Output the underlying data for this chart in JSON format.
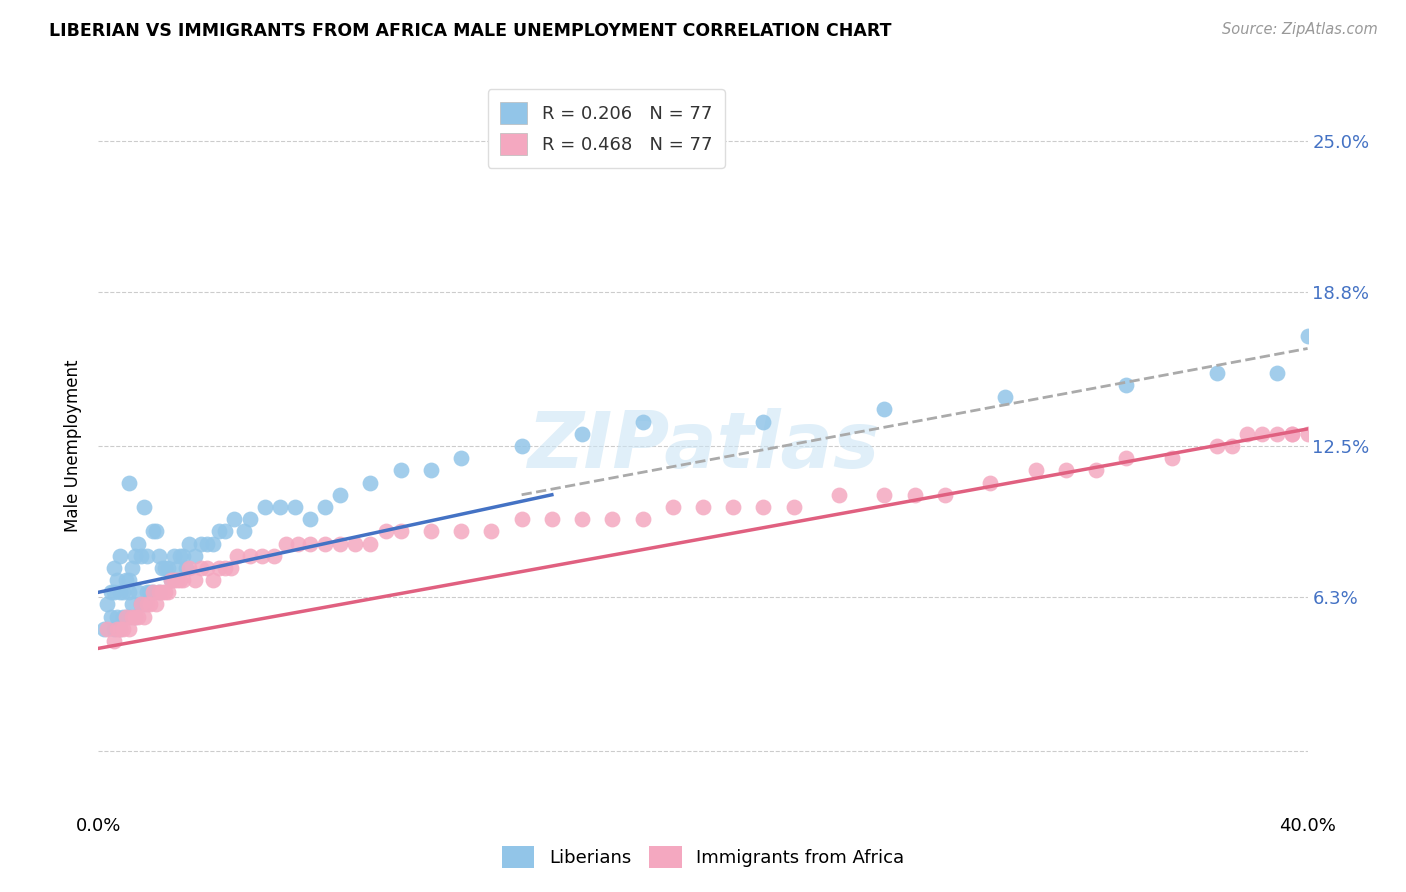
{
  "title": "LIBERIAN VS IMMIGRANTS FROM AFRICA MALE UNEMPLOYMENT CORRELATION CHART",
  "source": "Source: ZipAtlas.com",
  "ylabel": "Male Unemployment",
  "xlim": [
    0.0,
    0.4
  ],
  "ylim": [
    -0.025,
    0.275
  ],
  "yticks": [
    0.0,
    0.063,
    0.125,
    0.188,
    0.25
  ],
  "ytick_labels": [
    "",
    "6.3%",
    "12.5%",
    "18.8%",
    "25.0%"
  ],
  "xticks": [
    0.0,
    0.08,
    0.16,
    0.24,
    0.32,
    0.4
  ],
  "xtick_labels": [
    "0.0%",
    "",
    "",
    "",
    "",
    "40.0%"
  ],
  "color_blue": "#92C5E8",
  "color_pink": "#F4A8C0",
  "line_blue": "#4472C4",
  "line_pink": "#E06080",
  "line_dash_color": "#AAAAAA",
  "R_blue": 0.206,
  "R_pink": 0.468,
  "N": 77,
  "legend_label_blue": "Liberians",
  "legend_label_pink": "Immigrants from Africa",
  "watermark": "ZIPatlas",
  "blue_x": [
    0.002,
    0.003,
    0.004,
    0.004,
    0.005,
    0.005,
    0.005,
    0.006,
    0.006,
    0.007,
    0.007,
    0.007,
    0.008,
    0.008,
    0.009,
    0.009,
    0.01,
    0.01,
    0.01,
    0.01,
    0.011,
    0.011,
    0.012,
    0.012,
    0.013,
    0.013,
    0.014,
    0.014,
    0.015,
    0.015,
    0.016,
    0.016,
    0.017,
    0.018,
    0.018,
    0.019,
    0.02,
    0.02,
    0.021,
    0.022,
    0.023,
    0.024,
    0.025,
    0.026,
    0.027,
    0.028,
    0.029,
    0.03,
    0.032,
    0.034,
    0.036,
    0.038,
    0.04,
    0.042,
    0.045,
    0.048,
    0.05,
    0.055,
    0.06,
    0.065,
    0.07,
    0.075,
    0.08,
    0.09,
    0.1,
    0.11,
    0.12,
    0.14,
    0.16,
    0.18,
    0.22,
    0.26,
    0.3,
    0.34,
    0.37,
    0.39,
    0.4
  ],
  "blue_y": [
    0.05,
    0.06,
    0.055,
    0.065,
    0.05,
    0.065,
    0.075,
    0.055,
    0.07,
    0.05,
    0.065,
    0.08,
    0.055,
    0.065,
    0.055,
    0.07,
    0.055,
    0.065,
    0.07,
    0.11,
    0.06,
    0.075,
    0.055,
    0.08,
    0.065,
    0.085,
    0.06,
    0.08,
    0.06,
    0.1,
    0.065,
    0.08,
    0.065,
    0.065,
    0.09,
    0.09,
    0.065,
    0.08,
    0.075,
    0.075,
    0.075,
    0.07,
    0.08,
    0.075,
    0.08,
    0.08,
    0.075,
    0.085,
    0.08,
    0.085,
    0.085,
    0.085,
    0.09,
    0.09,
    0.095,
    0.09,
    0.095,
    0.1,
    0.1,
    0.1,
    0.095,
    0.1,
    0.105,
    0.11,
    0.115,
    0.115,
    0.12,
    0.125,
    0.13,
    0.135,
    0.135,
    0.14,
    0.145,
    0.15,
    0.155,
    0.155,
    0.17
  ],
  "pink_x": [
    0.003,
    0.005,
    0.006,
    0.007,
    0.008,
    0.009,
    0.01,
    0.011,
    0.012,
    0.013,
    0.014,
    0.015,
    0.016,
    0.017,
    0.018,
    0.019,
    0.02,
    0.021,
    0.022,
    0.023,
    0.024,
    0.025,
    0.026,
    0.027,
    0.028,
    0.03,
    0.032,
    0.034,
    0.036,
    0.038,
    0.04,
    0.042,
    0.044,
    0.046,
    0.05,
    0.054,
    0.058,
    0.062,
    0.066,
    0.07,
    0.075,
    0.08,
    0.085,
    0.09,
    0.095,
    0.1,
    0.11,
    0.12,
    0.13,
    0.14,
    0.15,
    0.16,
    0.17,
    0.18,
    0.19,
    0.2,
    0.21,
    0.22,
    0.23,
    0.245,
    0.26,
    0.27,
    0.28,
    0.295,
    0.31,
    0.32,
    0.33,
    0.34,
    0.355,
    0.37,
    0.375,
    0.38,
    0.385,
    0.39,
    0.395,
    0.395,
    0.4
  ],
  "pink_y": [
    0.05,
    0.045,
    0.05,
    0.05,
    0.05,
    0.055,
    0.05,
    0.055,
    0.055,
    0.055,
    0.06,
    0.055,
    0.06,
    0.06,
    0.065,
    0.06,
    0.065,
    0.065,
    0.065,
    0.065,
    0.07,
    0.07,
    0.07,
    0.07,
    0.07,
    0.075,
    0.07,
    0.075,
    0.075,
    0.07,
    0.075,
    0.075,
    0.075,
    0.08,
    0.08,
    0.08,
    0.08,
    0.085,
    0.085,
    0.085,
    0.085,
    0.085,
    0.085,
    0.085,
    0.09,
    0.09,
    0.09,
    0.09,
    0.09,
    0.095,
    0.095,
    0.095,
    0.095,
    0.095,
    0.1,
    0.1,
    0.1,
    0.1,
    0.1,
    0.105,
    0.105,
    0.105,
    0.105,
    0.11,
    0.115,
    0.115,
    0.115,
    0.12,
    0.12,
    0.125,
    0.125,
    0.13,
    0.13,
    0.13,
    0.13,
    0.13,
    0.13
  ],
  "blue_line_x": [
    0.0,
    0.15
  ],
  "blue_line_y": [
    0.065,
    0.105
  ],
  "dash_line_x": [
    0.14,
    0.4
  ],
  "dash_line_y": [
    0.105,
    0.165
  ],
  "pink_line_x": [
    0.0,
    0.4
  ],
  "pink_line_y": [
    0.042,
    0.132
  ]
}
